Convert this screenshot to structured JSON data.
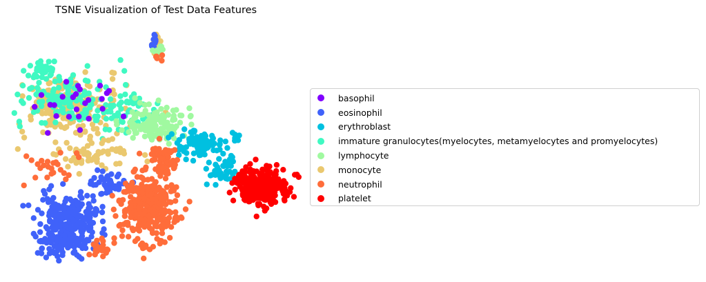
{
  "chart_data": {
    "type": "scatter",
    "title": "TSNE Visualization of Test Data Features",
    "xlabel": "",
    "ylabel": "",
    "axes_visible": false,
    "legend_position": "right",
    "series": [
      {
        "name": "basophil",
        "color": "#8000ff"
      },
      {
        "name": "eosinophil",
        "color": "#4062fa"
      },
      {
        "name": "erythroblast",
        "color": "#00c0e0"
      },
      {
        "name": "immature granulocytes(myelocytes, metamyelocytes and promyelocytes)",
        "color": "#40f9c2"
      },
      {
        "name": "lymphocyte",
        "color": "#a0f9a0"
      },
      {
        "name": "monocyte",
        "color": "#eac86f"
      },
      {
        "name": "neutrophil",
        "color": "#ff6d3a"
      },
      {
        "name": "platelet",
        "color": "#ff0000"
      }
    ]
  }
}
